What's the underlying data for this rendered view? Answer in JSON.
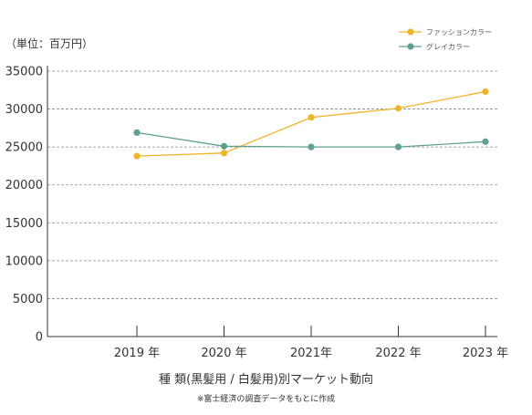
{
  "chart_data": {
    "type": "line",
    "unit_label": "（単位：百万円）",
    "title": "種 類(黒髪用 / 白髪用)別マーケット動向",
    "note": "※富士経済の調査データをもとに作成",
    "categories": [
      "2019 年",
      "2020 年",
      "2021年",
      "2022 年",
      "2023 年"
    ],
    "y_ticks": [
      "35000",
      "30000",
      "25000",
      "20000",
      "15000",
      "10000",
      "5000",
      "0"
    ],
    "ylim": [
      0,
      35000
    ],
    "grid": "horizontal dashed",
    "legend_position": "top-right",
    "series": [
      {
        "name": "ファッションカラー",
        "color": "#F0B429",
        "values": [
          23800,
          24200,
          28900,
          30100,
          32300
        ]
      },
      {
        "name": "グレイカラー",
        "color": "#5FA08F",
        "values": [
          26900,
          25100,
          25000,
          25000,
          25700
        ]
      }
    ]
  }
}
